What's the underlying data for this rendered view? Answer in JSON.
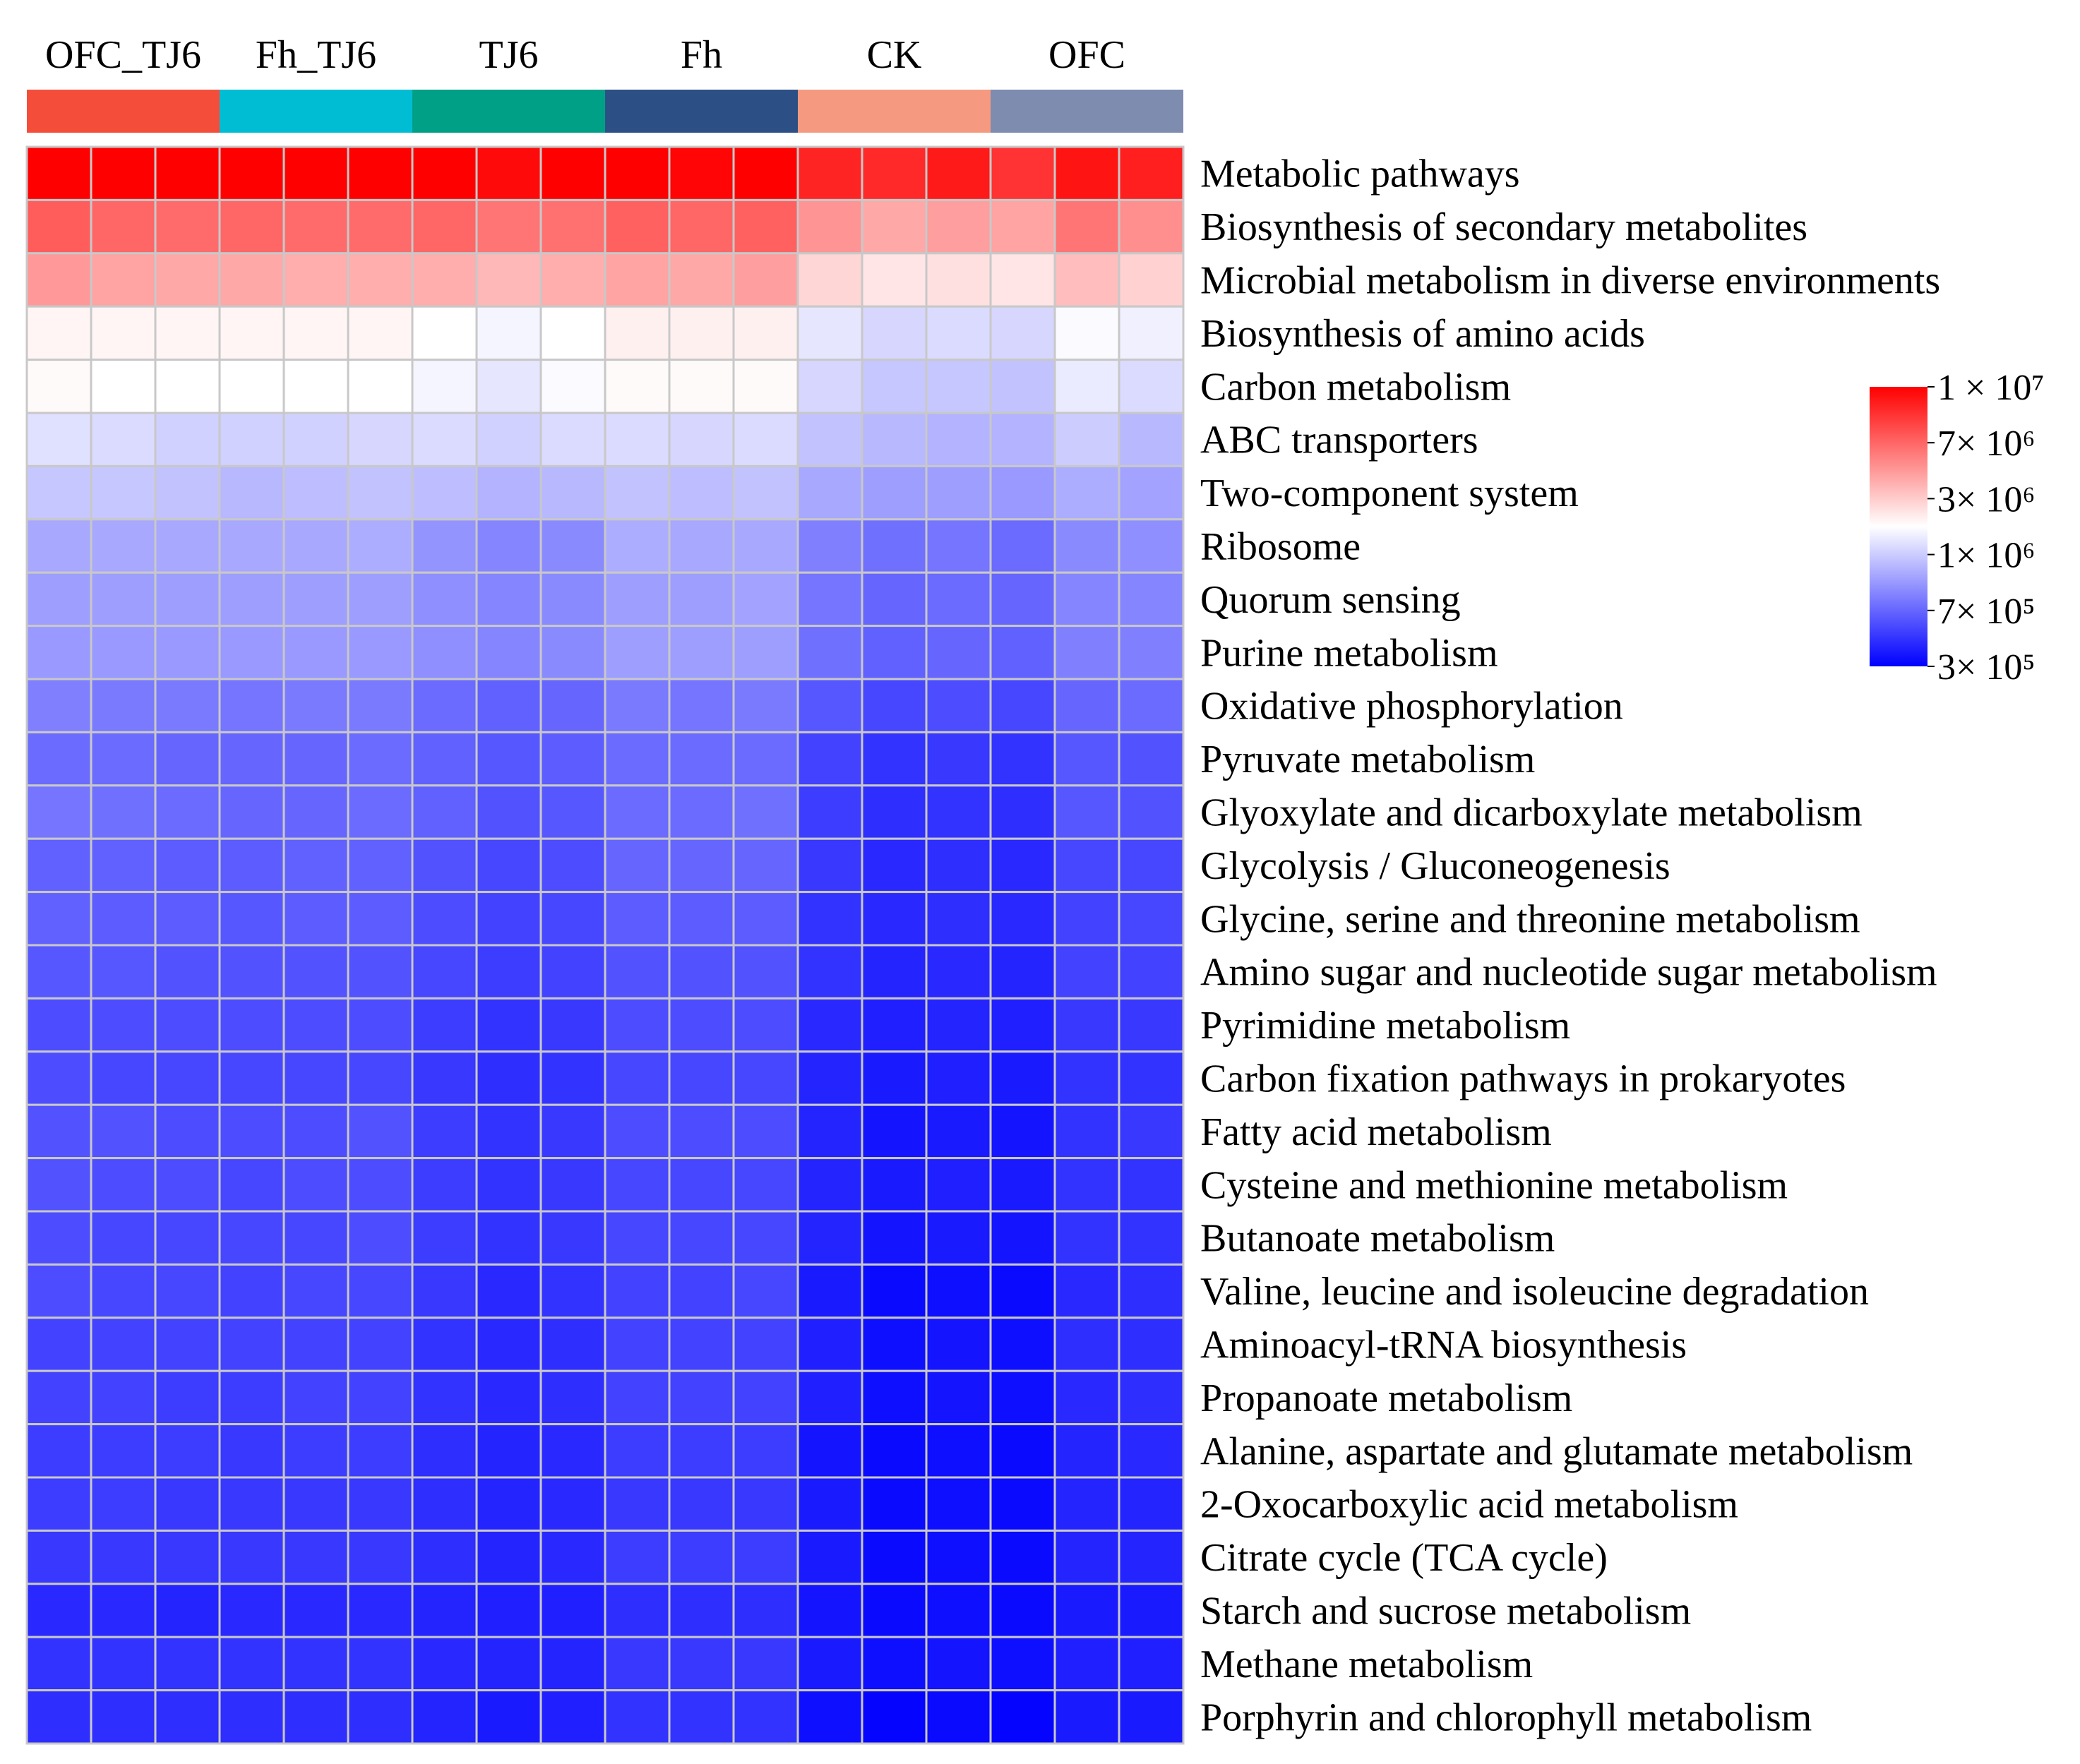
{
  "chart_data": {
    "type": "heatmap",
    "title": "",
    "groups": [
      {
        "name": "OFC_TJ6",
        "color": "#F44E3B",
        "columns": 3
      },
      {
        "name": "Fh_TJ6",
        "color": "#00BDD3",
        "columns": 3
      },
      {
        "name": "TJ6",
        "color": "#00A087",
        "columns": 3
      },
      {
        "name": "Fh",
        "color": "#2C4F85",
        "columns": 3
      },
      {
        "name": "CK",
        "color": "#F59A80",
        "columns": 3
      },
      {
        "name": "OFC",
        "color": "#7E8CAF",
        "columns": 3
      }
    ],
    "rows": [
      "Metabolic pathways",
      "Biosynthesis of secondary metabolites",
      "Microbial metabolism in diverse environments",
      "Biosynthesis of amino acids",
      "Carbon metabolism",
      "ABC transporters",
      "Two-component system",
      "Ribosome",
      "Quorum sensing",
      "Purine metabolism",
      "Oxidative phosphorylation",
      "Pyruvate metabolism",
      "Glyoxylate and dicarboxylate metabolism",
      "Glycolysis / Gluconeogenesis",
      "Glycine, serine and threonine metabolism",
      "Amino sugar and nucleotide sugar metabolism",
      "Pyrimidine metabolism",
      "Carbon fixation pathways in prokaryotes",
      "Fatty acid metabolism",
      "Cysteine and methionine metabolism",
      "Butanoate metabolism",
      "Valine, leucine and isoleucine degradation",
      "Aminoacyl-tRNA biosynthesis",
      "Propanoate metabolism",
      "Alanine, aspartate and glutamate metabolism",
      "2-Oxocarboxylic acid metabolism",
      "Citrate cycle (TCA cycle)",
      "Starch and sucrose metabolism",
      "Methane metabolism",
      "Porphyrin and chlorophyll metabolism"
    ],
    "values": [
      [
        1.0,
        1.0,
        1.0,
        1.0,
        1.0,
        1.0,
        1.0,
        0.98,
        1.0,
        1.0,
        0.99,
        1.0,
        0.93,
        0.92,
        0.95,
        0.9,
        0.96,
        0.94
      ],
      [
        0.82,
        0.8,
        0.79,
        0.8,
        0.79,
        0.79,
        0.8,
        0.77,
        0.78,
        0.81,
        0.8,
        0.81,
        0.71,
        0.67,
        0.69,
        0.68,
        0.77,
        0.72
      ],
      [
        0.7,
        0.68,
        0.67,
        0.67,
        0.66,
        0.66,
        0.66,
        0.64,
        0.66,
        0.68,
        0.67,
        0.69,
        0.58,
        0.55,
        0.56,
        0.55,
        0.63,
        0.59
      ],
      [
        0.52,
        0.52,
        0.52,
        0.52,
        0.52,
        0.52,
        0.5,
        0.48,
        0.5,
        0.53,
        0.53,
        0.53,
        0.45,
        0.42,
        0.43,
        0.42,
        0.49,
        0.47
      ],
      [
        0.51,
        0.5,
        0.5,
        0.5,
        0.5,
        0.5,
        0.48,
        0.45,
        0.49,
        0.51,
        0.51,
        0.51,
        0.42,
        0.39,
        0.39,
        0.38,
        0.46,
        0.43
      ],
      [
        0.44,
        0.43,
        0.41,
        0.41,
        0.41,
        0.42,
        0.43,
        0.41,
        0.43,
        0.43,
        0.42,
        0.43,
        0.38,
        0.36,
        0.35,
        0.35,
        0.4,
        0.36
      ],
      [
        0.39,
        0.39,
        0.38,
        0.36,
        0.37,
        0.38,
        0.37,
        0.35,
        0.36,
        0.38,
        0.37,
        0.38,
        0.33,
        0.31,
        0.31,
        0.3,
        0.34,
        0.32
      ],
      [
        0.33,
        0.33,
        0.33,
        0.33,
        0.33,
        0.34,
        0.29,
        0.26,
        0.27,
        0.34,
        0.33,
        0.33,
        0.25,
        0.22,
        0.23,
        0.21,
        0.27,
        0.28
      ],
      [
        0.31,
        0.31,
        0.31,
        0.31,
        0.31,
        0.31,
        0.28,
        0.26,
        0.27,
        0.31,
        0.31,
        0.32,
        0.23,
        0.2,
        0.21,
        0.2,
        0.26,
        0.26
      ],
      [
        0.3,
        0.3,
        0.3,
        0.3,
        0.3,
        0.3,
        0.28,
        0.26,
        0.27,
        0.31,
        0.31,
        0.31,
        0.22,
        0.19,
        0.2,
        0.19,
        0.25,
        0.25
      ],
      [
        0.25,
        0.24,
        0.24,
        0.23,
        0.24,
        0.24,
        0.21,
        0.19,
        0.2,
        0.24,
        0.23,
        0.24,
        0.17,
        0.14,
        0.15,
        0.14,
        0.2,
        0.21
      ],
      [
        0.21,
        0.21,
        0.2,
        0.2,
        0.2,
        0.21,
        0.19,
        0.17,
        0.18,
        0.21,
        0.21,
        0.21,
        0.13,
        0.1,
        0.11,
        0.1,
        0.17,
        0.16
      ],
      [
        0.23,
        0.22,
        0.21,
        0.2,
        0.2,
        0.21,
        0.19,
        0.16,
        0.17,
        0.21,
        0.21,
        0.22,
        0.12,
        0.09,
        0.1,
        0.09,
        0.17,
        0.16
      ],
      [
        0.19,
        0.19,
        0.18,
        0.18,
        0.19,
        0.19,
        0.16,
        0.14,
        0.15,
        0.2,
        0.2,
        0.2,
        0.11,
        0.08,
        0.09,
        0.08,
        0.14,
        0.14
      ],
      [
        0.19,
        0.18,
        0.18,
        0.17,
        0.18,
        0.18,
        0.15,
        0.13,
        0.14,
        0.18,
        0.18,
        0.18,
        0.1,
        0.08,
        0.09,
        0.08,
        0.13,
        0.14
      ],
      [
        0.17,
        0.17,
        0.16,
        0.16,
        0.16,
        0.16,
        0.14,
        0.12,
        0.13,
        0.16,
        0.16,
        0.16,
        0.1,
        0.07,
        0.08,
        0.07,
        0.13,
        0.13
      ],
      [
        0.15,
        0.15,
        0.15,
        0.15,
        0.15,
        0.15,
        0.12,
        0.1,
        0.11,
        0.15,
        0.15,
        0.15,
        0.08,
        0.06,
        0.07,
        0.06,
        0.11,
        0.11
      ],
      [
        0.15,
        0.14,
        0.14,
        0.14,
        0.14,
        0.14,
        0.11,
        0.09,
        0.1,
        0.14,
        0.14,
        0.14,
        0.07,
        0.05,
        0.06,
        0.05,
        0.1,
        0.1
      ],
      [
        0.16,
        0.16,
        0.15,
        0.15,
        0.15,
        0.16,
        0.12,
        0.1,
        0.11,
        0.15,
        0.15,
        0.15,
        0.07,
        0.04,
        0.05,
        0.04,
        0.1,
        0.11
      ],
      [
        0.16,
        0.15,
        0.15,
        0.14,
        0.15,
        0.15,
        0.12,
        0.1,
        0.11,
        0.14,
        0.14,
        0.14,
        0.07,
        0.05,
        0.06,
        0.05,
        0.1,
        0.1
      ],
      [
        0.15,
        0.14,
        0.14,
        0.14,
        0.14,
        0.15,
        0.12,
        0.1,
        0.11,
        0.14,
        0.14,
        0.14,
        0.07,
        0.04,
        0.05,
        0.04,
        0.1,
        0.1
      ],
      [
        0.15,
        0.14,
        0.14,
        0.13,
        0.14,
        0.14,
        0.11,
        0.08,
        0.1,
        0.13,
        0.13,
        0.14,
        0.05,
        0.02,
        0.03,
        0.02,
        0.08,
        0.09
      ],
      [
        0.13,
        0.13,
        0.13,
        0.13,
        0.13,
        0.13,
        0.1,
        0.08,
        0.09,
        0.13,
        0.13,
        0.13,
        0.06,
        0.03,
        0.04,
        0.03,
        0.09,
        0.09
      ],
      [
        0.13,
        0.13,
        0.12,
        0.12,
        0.13,
        0.13,
        0.1,
        0.08,
        0.09,
        0.13,
        0.13,
        0.13,
        0.06,
        0.03,
        0.04,
        0.03,
        0.08,
        0.09
      ],
      [
        0.12,
        0.12,
        0.12,
        0.11,
        0.12,
        0.12,
        0.09,
        0.07,
        0.08,
        0.12,
        0.12,
        0.12,
        0.04,
        0.02,
        0.03,
        0.02,
        0.07,
        0.08
      ],
      [
        0.12,
        0.12,
        0.11,
        0.11,
        0.11,
        0.11,
        0.09,
        0.07,
        0.08,
        0.11,
        0.11,
        0.11,
        0.05,
        0.02,
        0.03,
        0.02,
        0.07,
        0.07
      ],
      [
        0.11,
        0.11,
        0.11,
        0.11,
        0.11,
        0.11,
        0.09,
        0.07,
        0.08,
        0.12,
        0.12,
        0.12,
        0.05,
        0.02,
        0.03,
        0.02,
        0.07,
        0.07
      ],
      [
        0.08,
        0.08,
        0.07,
        0.08,
        0.08,
        0.08,
        0.07,
        0.06,
        0.06,
        0.09,
        0.09,
        0.09,
        0.04,
        0.02,
        0.03,
        0.02,
        0.05,
        0.05
      ],
      [
        0.1,
        0.1,
        0.1,
        0.1,
        0.1,
        0.1,
        0.08,
        0.07,
        0.07,
        0.11,
        0.11,
        0.11,
        0.05,
        0.03,
        0.04,
        0.03,
        0.06,
        0.06
      ],
      [
        0.09,
        0.09,
        0.09,
        0.09,
        0.09,
        0.09,
        0.07,
        0.05,
        0.06,
        0.1,
        0.1,
        0.1,
        0.03,
        0.01,
        0.02,
        0.01,
        0.05,
        0.05
      ]
    ],
    "color_scale": {
      "low": "#0000FF",
      "mid": "#FFFFFF",
      "high": "#FF0000",
      "ticks": [
        "1 × 10⁷",
        "7× 10⁶",
        "3× 10⁶",
        "1× 10⁶",
        "7× 10⁵",
        "3× 10⁵"
      ]
    },
    "legend_position": "right",
    "grid": true
  }
}
